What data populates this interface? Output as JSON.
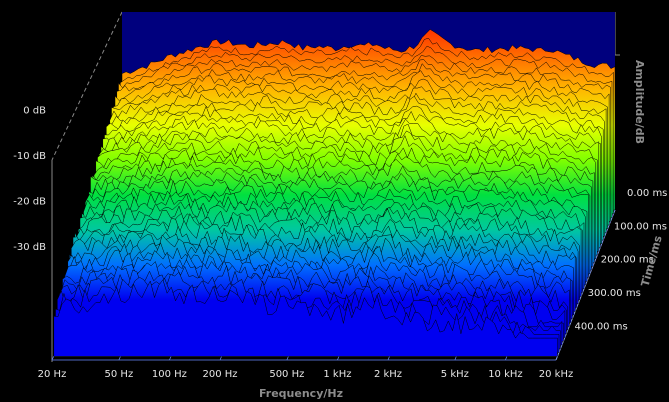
{
  "chart_data": {
    "type": "waterfall-3d",
    "xlabel": "Frequency/Hz",
    "ylabel": "Amplitude/dB",
    "zlabel": "Time/ms",
    "x_scale": "log",
    "xlim": [
      20,
      20000
    ],
    "ylim": [
      -35,
      5
    ],
    "zlim": [
      0,
      450
    ],
    "x_ticks": [
      {
        "value": 20,
        "label": "20 Hz"
      },
      {
        "value": 50,
        "label": "50 Hz"
      },
      {
        "value": 100,
        "label": "100 Hz"
      },
      {
        "value": 200,
        "label": "200 Hz"
      },
      {
        "value": 500,
        "label": "500 Hz"
      },
      {
        "value": 1000,
        "label": "1 kHz"
      },
      {
        "value": 2000,
        "label": "2 kHz"
      },
      {
        "value": 5000,
        "label": "5 kHz"
      },
      {
        "value": 10000,
        "label": "10 kHz"
      },
      {
        "value": 20000,
        "label": "20 kHz"
      }
    ],
    "y_ticks": [
      {
        "value": 0,
        "label": "0 dB"
      },
      {
        "value": -10,
        "label": "-10 dB"
      },
      {
        "value": -20,
        "label": "-20 dB"
      },
      {
        "value": -30,
        "label": "-30 dB"
      }
    ],
    "z_ticks": [
      {
        "value": 0,
        "label": "0.00 ms"
      },
      {
        "value": 100,
        "label": "100.00 ms"
      },
      {
        "value": 200,
        "label": "200.00 ms"
      },
      {
        "value": 300,
        "label": "300.00 ms"
      },
      {
        "value": 400,
        "label": "400.00 ms"
      }
    ],
    "slice_count": 40,
    "spectrum_0ms": {
      "freq": [
        20,
        30,
        40,
        50,
        60,
        80,
        100,
        120,
        150,
        200,
        250,
        300,
        400,
        500,
        600,
        700,
        800,
        1000,
        1200,
        1500,
        2000,
        2500,
        3000,
        4000,
        5000,
        6000,
        7000,
        8000,
        10000,
        12000,
        15000,
        20000
      ],
      "db": [
        -5,
        -3,
        -1,
        0,
        1,
        2,
        1.5,
        1,
        1.5,
        2,
        0.5,
        1,
        0.5,
        1.5,
        1,
        1.5,
        0.5,
        0,
        1,
        4,
        1.5,
        0.5,
        0,
        0.5,
        0.5,
        0.5,
        0,
        0.5,
        -1,
        -2,
        -3,
        -3.5
      ]
    },
    "decay_db_per_slice": 0.78,
    "noise_floor_db": -31,
    "colors": {
      "back_panel": "#00007e",
      "floor_grid": "#6a8cff",
      "background": "#000000",
      "slice_line": "#000000",
      "colormap": [
        "#ff2000",
        "#ff6a00",
        "#ffb800",
        "#e8ff00",
        "#80ff00",
        "#00e040",
        "#00c8a0",
        "#0070ff",
        "#0000f0"
      ]
    }
  }
}
